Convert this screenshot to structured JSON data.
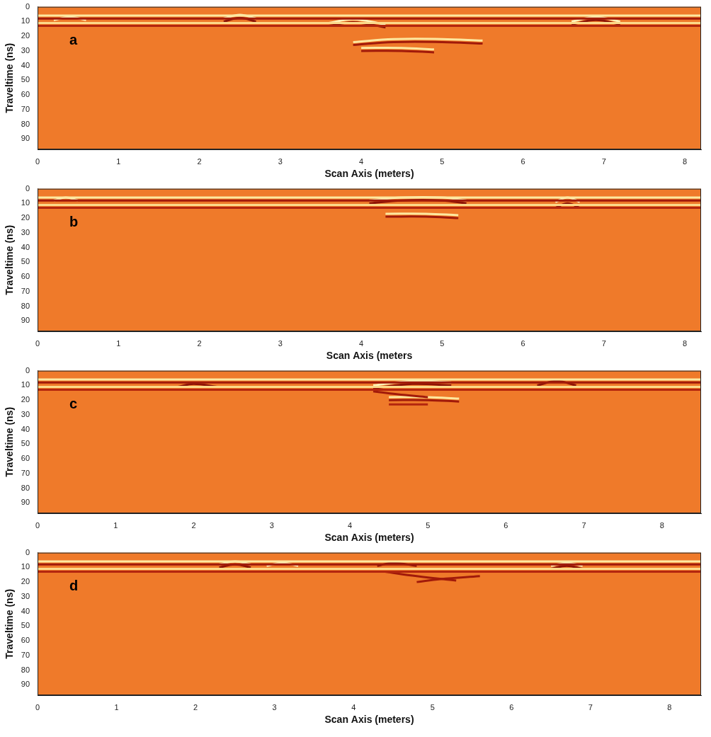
{
  "chart_data": [
    {
      "type": "line",
      "title": "a",
      "x_label": "Scan Axis (meters)",
      "y_label": "Traveltime (ns)",
      "xlim": [
        0,
        8.2
      ],
      "xticks": [
        0,
        1,
        2,
        3,
        4,
        5,
        6,
        7,
        8
      ],
      "ylim": [
        0,
        97
      ],
      "yticks": [
        0,
        10,
        20,
        30,
        40,
        50,
        60,
        70,
        80,
        90
      ],
      "grid": false,
      "series": [
        {
          "color": "#fde8a0",
          "x": [
            0,
            8.2
          ],
          "values": [
            6,
            6
          ]
        },
        {
          "color": "#a11a0a",
          "x": [
            0,
            8.2
          ],
          "values": [
            8,
            8
          ]
        },
        {
          "color": "#fcd98a",
          "x": [
            0,
            8.2
          ],
          "values": [
            11,
            11
          ]
        },
        {
          "color": "#b3260e",
          "x": [
            0,
            8.2
          ],
          "values": [
            13,
            13
          ]
        },
        {
          "color": "#fff2b8",
          "x": [
            0.2,
            0.4,
            0.6
          ],
          "values": [
            9,
            7,
            9
          ]
        },
        {
          "color": "#fff2b8",
          "x": [
            2.3,
            2.5,
            2.7
          ],
          "values": [
            8,
            5.5,
            8
          ]
        },
        {
          "color": "#8e1406",
          "x": [
            2.3,
            2.5,
            2.7
          ],
          "values": [
            10,
            7.5,
            10
          ]
        },
        {
          "color": "#fff2b8",
          "x": [
            3.6,
            3.9,
            4.3
          ],
          "values": [
            11,
            8.5,
            12
          ]
        },
        {
          "color": "#8e1406",
          "x": [
            3.6,
            3.9,
            4.3
          ],
          "values": [
            13,
            10.5,
            14
          ]
        },
        {
          "color": "#fde8a0",
          "x": [
            3.9,
            4.4,
            5.0,
            5.5
          ],
          "values": [
            24,
            22,
            22,
            23
          ]
        },
        {
          "color": "#a11a0a",
          "x": [
            3.9,
            4.4,
            5.0,
            5.5
          ],
          "values": [
            26,
            24,
            24,
            25
          ]
        },
        {
          "color": "#fde8a0",
          "x": [
            4.0,
            4.5,
            4.9
          ],
          "values": [
            28,
            28,
            29
          ]
        },
        {
          "color": "#a11a0a",
          "x": [
            4.0,
            4.5,
            4.9
          ],
          "values": [
            30,
            30,
            31
          ]
        },
        {
          "color": "#fff2b8",
          "x": [
            6.6,
            6.9,
            7.2
          ],
          "values": [
            10,
            7,
            10
          ]
        },
        {
          "color": "#8e1406",
          "x": [
            6.6,
            6.9,
            7.2
          ],
          "values": [
            12,
            9,
            12
          ]
        }
      ]
    },
    {
      "type": "line",
      "title": "b",
      "x_label": "Scan Axis (meters",
      "y_label": "Traveltime (ns)",
      "xlim": [
        0,
        8.2
      ],
      "xticks": [
        0,
        1,
        2,
        3,
        4,
        5,
        6,
        7,
        8
      ],
      "ylim": [
        0,
        97
      ],
      "yticks": [
        0,
        10,
        20,
        30,
        40,
        50,
        60,
        70,
        80,
        90
      ],
      "grid": false,
      "series": [
        {
          "color": "#fde8a0",
          "x": [
            0,
            8.2
          ],
          "values": [
            6,
            6
          ]
        },
        {
          "color": "#a11a0a",
          "x": [
            0,
            8.2
          ],
          "values": [
            8,
            8
          ]
        },
        {
          "color": "#fcd98a",
          "x": [
            0,
            8.2
          ],
          "values": [
            11,
            11
          ]
        },
        {
          "color": "#b3260e",
          "x": [
            0,
            8.2
          ],
          "values": [
            13,
            13
          ]
        },
        {
          "color": "#fff2b8",
          "x": [
            0.2,
            0.35,
            0.5
          ],
          "values": [
            8,
            6,
            8
          ]
        },
        {
          "color": "#fff2b8",
          "x": [
            4.1,
            4.5,
            5.0,
            5.3
          ],
          "values": [
            8,
            6,
            6,
            8
          ]
        },
        {
          "color": "#8e1406",
          "x": [
            4.1,
            4.5,
            5.0,
            5.3
          ],
          "values": [
            10,
            8,
            8,
            10
          ]
        },
        {
          "color": "#fde8a0",
          "x": [
            4.3,
            4.8,
            5.2
          ],
          "values": [
            17,
            17,
            18
          ]
        },
        {
          "color": "#a11a0a",
          "x": [
            4.3,
            4.8,
            5.2
          ],
          "values": [
            19,
            19,
            20
          ]
        },
        {
          "color": "#8e1406",
          "x": [
            5.6,
            6.1
          ],
          "values": [
            11,
            11
          ]
        },
        {
          "color": "#fff2b8",
          "x": [
            6.4,
            6.55,
            6.7
          ],
          "values": [
            9,
            6,
            9
          ]
        },
        {
          "color": "#8e1406",
          "x": [
            6.4,
            6.55,
            6.7
          ],
          "values": [
            13,
            10,
            13
          ]
        }
      ]
    },
    {
      "type": "line",
      "title": "c",
      "x_label": "Scan Axis (meters)",
      "y_label": "Traveltime (ns)",
      "xlim": [
        0,
        8.5
      ],
      "xticks": [
        0,
        1,
        2,
        3,
        4,
        5,
        6,
        7,
        8
      ],
      "ylim": [
        0,
        97
      ],
      "yticks": [
        0,
        10,
        20,
        30,
        40,
        50,
        60,
        70,
        80,
        90
      ],
      "grid": false,
      "series": [
        {
          "color": "#fde8a0",
          "x": [
            0,
            8.5
          ],
          "values": [
            6,
            6
          ]
        },
        {
          "color": "#a11a0a",
          "x": [
            0,
            8.5
          ],
          "values": [
            8,
            8
          ]
        },
        {
          "color": "#fcd98a",
          "x": [
            0,
            8.5
          ],
          "values": [
            11,
            11
          ]
        },
        {
          "color": "#b3260e",
          "x": [
            0,
            8.5
          ],
          "values": [
            13,
            13
          ]
        },
        {
          "color": "#8e1406",
          "x": [
            1.8,
            2.0,
            2.3
          ],
          "values": [
            11,
            9,
            11
          ]
        },
        {
          "color": "#fff2b8",
          "x": [
            4.3,
            4.8,
            5.3
          ],
          "values": [
            10,
            7,
            8
          ]
        },
        {
          "color": "#8e1406",
          "x": [
            4.3,
            4.8,
            5.3
          ],
          "values": [
            12,
            9,
            10
          ]
        },
        {
          "color": "#a11a0a",
          "x": [
            4.3,
            4.6,
            5.0
          ],
          "values": [
            14,
            16,
            18
          ]
        },
        {
          "color": "#fde8a0",
          "x": [
            4.5,
            5.0,
            5.4
          ],
          "values": [
            18,
            18,
            19
          ]
        },
        {
          "color": "#a11a0a",
          "x": [
            4.5,
            5.0,
            5.4
          ],
          "values": [
            20,
            20,
            21
          ]
        },
        {
          "color": "#b3260e",
          "x": [
            4.5,
            5.0
          ],
          "values": [
            23,
            23
          ]
        },
        {
          "color": "#8e1406",
          "x": [
            6.4,
            6.65,
            6.9
          ],
          "values": [
            10,
            7,
            10
          ]
        }
      ]
    },
    {
      "type": "line",
      "title": "d",
      "x_label": "Scan Axis (meters)",
      "y_label": "Traveltime (ns)",
      "xlim": [
        0,
        8.4
      ],
      "xticks": [
        0,
        1,
        2,
        3,
        4,
        5,
        6,
        7,
        8
      ],
      "ylim": [
        0,
        97
      ],
      "yticks": [
        0,
        10,
        20,
        30,
        40,
        50,
        60,
        70,
        80,
        90
      ],
      "grid": false,
      "series": [
        {
          "color": "#fde8a0",
          "x": [
            0,
            8.4
          ],
          "values": [
            6,
            6
          ]
        },
        {
          "color": "#a11a0a",
          "x": [
            0,
            8.4
          ],
          "values": [
            8,
            8
          ]
        },
        {
          "color": "#fcd98a",
          "x": [
            0,
            8.4
          ],
          "values": [
            11,
            11
          ]
        },
        {
          "color": "#b3260e",
          "x": [
            0,
            8.4
          ],
          "values": [
            13,
            13
          ]
        },
        {
          "color": "#fff2b8",
          "x": [
            2.3,
            2.5,
            2.7
          ],
          "values": [
            8,
            6,
            8
          ]
        },
        {
          "color": "#8e1406",
          "x": [
            2.3,
            2.5,
            2.7
          ],
          "values": [
            10,
            8,
            10
          ]
        },
        {
          "color": "#fff2b8",
          "x": [
            2.9,
            3.1,
            3.3
          ],
          "values": [
            9,
            7,
            9
          ]
        },
        {
          "color": "#8e1406",
          "x": [
            4.3,
            4.5,
            4.8
          ],
          "values": [
            9,
            7,
            9
          ]
        },
        {
          "color": "#a11a0a",
          "x": [
            4.4,
            4.8,
            5.3
          ],
          "values": [
            13,
            16,
            19
          ]
        },
        {
          "color": "#a11a0a",
          "x": [
            4.8,
            5.1,
            5.6
          ],
          "values": [
            20,
            18,
            16
          ]
        },
        {
          "color": "#fff2b8",
          "x": [
            6.5,
            6.7,
            6.9
          ],
          "values": [
            9,
            7,
            9
          ]
        },
        {
          "color": "#8e1406",
          "x": [
            6.5,
            6.7,
            6.9
          ],
          "values": [
            11,
            9,
            11
          ]
        }
      ]
    }
  ]
}
